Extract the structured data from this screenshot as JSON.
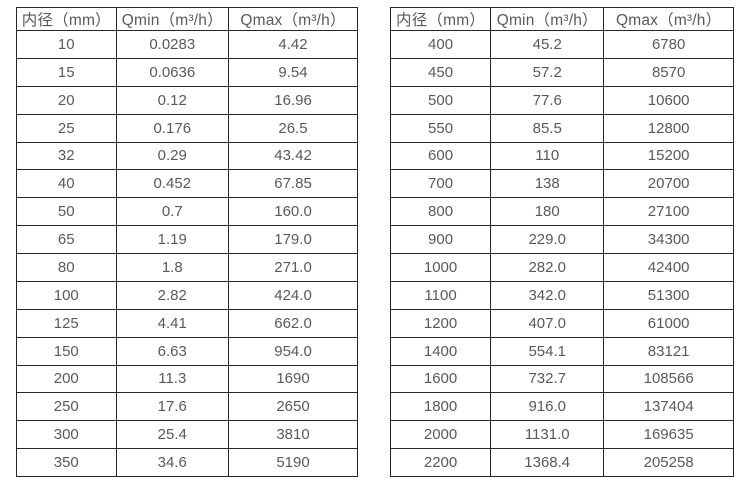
{
  "colors": {
    "background": "#ffffff",
    "border": "#262626",
    "text": "#595959"
  },
  "tables": [
    {
      "name": "small-diameter-flow-rates",
      "headers": [
        "内径（mm）",
        "Qmin（m³/h）",
        "Qmax（m³/h）"
      ],
      "rows": [
        [
          "10",
          "0.0283",
          "4.42"
        ],
        [
          "15",
          "0.0636",
          "9.54"
        ],
        [
          "20",
          "0.12",
          "16.96"
        ],
        [
          "25",
          "0.176",
          "26.5"
        ],
        [
          "32",
          "0.29",
          "43.42"
        ],
        [
          "40",
          "0.452",
          "67.85"
        ],
        [
          "50",
          "0.7",
          "160.0"
        ],
        [
          "65",
          "1.19",
          "179.0"
        ],
        [
          "80",
          "1.8",
          "271.0"
        ],
        [
          "100",
          "2.82",
          "424.0"
        ],
        [
          "125",
          "4.41",
          "662.0"
        ],
        [
          "150",
          "6.63",
          "954.0"
        ],
        [
          "200",
          "11.3",
          "1690"
        ],
        [
          "250",
          "17.6",
          "2650"
        ],
        [
          "300",
          "25.4",
          "3810"
        ],
        [
          "350",
          "34.6",
          "5190"
        ]
      ]
    },
    {
      "name": "large-diameter-flow-rates",
      "headers": [
        "内径（mm）",
        "Qmin（m³/h）",
        "Qmax（m³/h）"
      ],
      "rows": [
        [
          "400",
          "45.2",
          "6780"
        ],
        [
          "450",
          "57.2",
          "8570"
        ],
        [
          "500",
          "77.6",
          "10600"
        ],
        [
          "550",
          "85.5",
          "12800"
        ],
        [
          "600",
          "110",
          "15200"
        ],
        [
          "700",
          "138",
          "20700"
        ],
        [
          "800",
          "180",
          "27100"
        ],
        [
          "900",
          "229.0",
          "34300"
        ],
        [
          "1000",
          "282.0",
          "42400"
        ],
        [
          "1100",
          "342.0",
          "51300"
        ],
        [
          "1200",
          "407.0",
          "61000"
        ],
        [
          "1400",
          "554.1",
          "83121"
        ],
        [
          "1600",
          "732.7",
          "108566"
        ],
        [
          "1800",
          "916.0",
          "137404"
        ],
        [
          "2000",
          "1131.0",
          "169635"
        ],
        [
          "2200",
          "1368.4",
          "205258"
        ]
      ]
    }
  ]
}
